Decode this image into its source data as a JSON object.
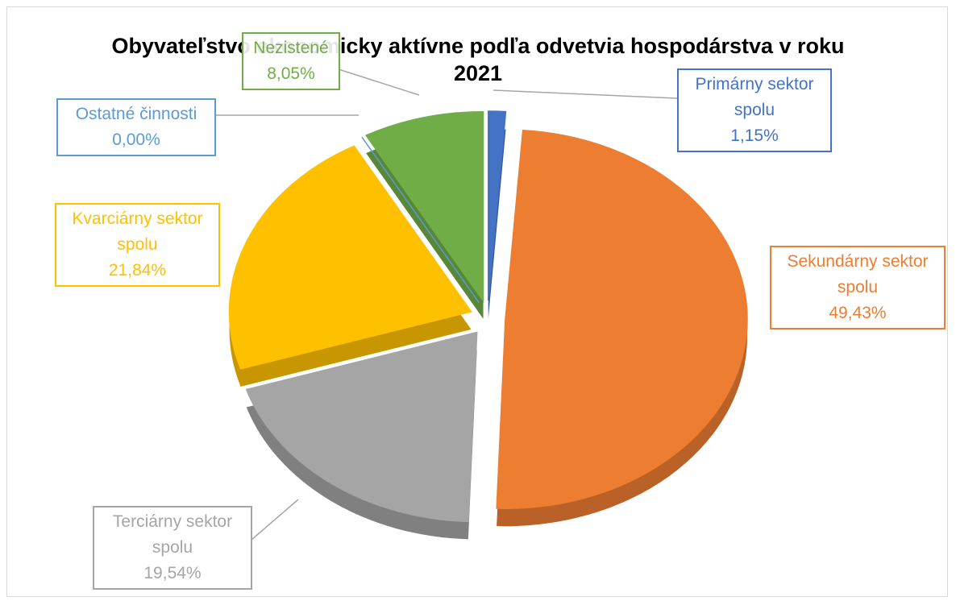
{
  "chart_data": {
    "type": "pie",
    "title": "Obyvateľstvo ekonomicky aktívne podľa odvetvia hospodárstva v roku 2021",
    "categories": [
      "Primárny sektor spolu",
      "Sekundárny sektor spolu",
      "Terciárny sektor spolu",
      "Kvarciárny sektor spolu",
      "Ostatné činnosti",
      "Nezistené"
    ],
    "values": [
      1.15,
      49.43,
      19.54,
      21.84,
      0.0,
      8.05
    ],
    "value_labels": [
      "1,15%",
      "49,43%",
      "19,54%",
      "21,84%",
      "0,00%",
      "8,05%"
    ],
    "colors": [
      "#4472c4",
      "#ed7d31",
      "#a5a5a5",
      "#ffc000",
      "#5b9bd5",
      "#70ad47"
    ]
  }
}
